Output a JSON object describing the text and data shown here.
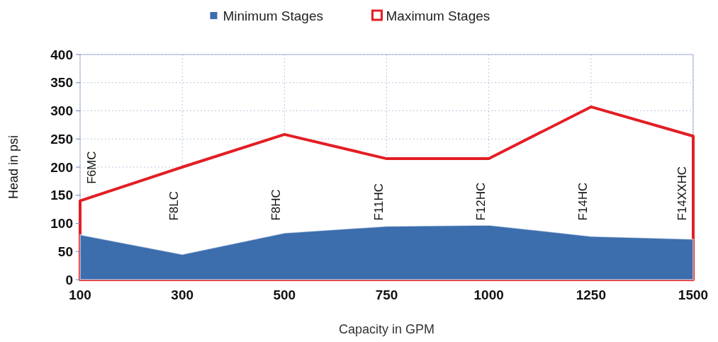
{
  "chart_data": {
    "type": "area",
    "xlabel": "Capacity in GPM",
    "ylabel": "Head in psi",
    "categories": [
      "100",
      "300",
      "500",
      "750",
      "1000",
      "1250",
      "1500"
    ],
    "series": [
      {
        "name": "Minimum Stages",
        "color": "#3c6eae",
        "values": [
          80,
          45,
          83,
          95,
          97,
          77,
          72
        ]
      },
      {
        "name": "Maximum Stages",
        "color": "#e31e24",
        "values": [
          140,
          200,
          258,
          215,
          215,
          307,
          255
        ]
      }
    ],
    "ylim": [
      0,
      400
    ],
    "yticks": [
      0,
      50,
      100,
      150,
      200,
      250,
      300,
      350,
      400
    ],
    "grid": true,
    "legend": "top",
    "annotations": [
      "F6MC",
      "F8LC",
      "F8HC",
      "F11HC",
      "F12HC",
      "F14HC",
      "F14XXHC"
    ]
  }
}
